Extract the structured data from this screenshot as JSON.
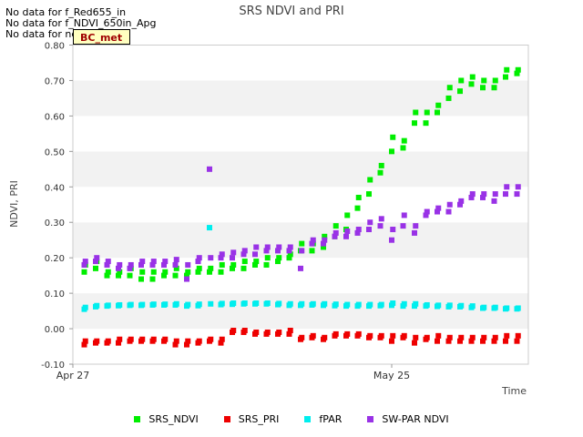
{
  "no_data": [
    "No data for f_Red655_in",
    "No data for f_NDVI_650in_Apg",
    "No data for ndvi"
  ],
  "badge": "BC_met",
  "colors": {
    "SRS_NDVI": "#00ee00",
    "SRS_PRI": "#ee0000",
    "fPAR": "#00eeee",
    "SW-PAR NDVI": "#9932e6"
  },
  "chart_data": {
    "type": "scatter",
    "title": "SRS NDVI and PRI",
    "xlabel": "Time",
    "ylabel": "NDVI, PRI",
    "ylim": [
      -0.1,
      0.8
    ],
    "xlim_days": [
      0,
      40
    ],
    "x_ticks": [
      {
        "day": 0,
        "label": "Apr 27"
      },
      {
        "day": 28,
        "label": "May 25"
      }
    ],
    "y_ticks": [
      -0.1,
      0.0,
      0.1,
      0.2,
      0.3,
      0.4,
      0.5,
      0.6,
      0.7,
      0.8
    ],
    "y_tick_labels": [
      "-0.10",
      "0.00",
      "0.10",
      "0.20",
      "0.30",
      "0.40",
      "0.50",
      "0.60",
      "0.70",
      "0.80"
    ],
    "grid_bands": true,
    "series": [
      {
        "name": "SRS_NDVI",
        "x": [
          1,
          1.1,
          2,
          2.1,
          3,
          3.1,
          4,
          4.1,
          5,
          5.1,
          6,
          6.1,
          7,
          7.1,
          8,
          8.1,
          9,
          9.1,
          10,
          10.1,
          11,
          11.1,
          12,
          12.1,
          13,
          13.1,
          14,
          14.1,
          15,
          15.1,
          16,
          16.1,
          17,
          17.1,
          18,
          18.1,
          19,
          19.1,
          20,
          20.1,
          21,
          21.1,
          22,
          22.1,
          23,
          23.1,
          24,
          24.1,
          25,
          25.1,
          26,
          26.1,
          27,
          27.1,
          28,
          28.1,
          29,
          29.1,
          30,
          30.1,
          31,
          31.1,
          32,
          32.1,
          33,
          33.1,
          34,
          34.1,
          35,
          35.1,
          36,
          36.1,
          37,
          37.1,
          38,
          38.1,
          39,
          39.1
        ],
        "y": [
          0.16,
          0.18,
          0.17,
          0.19,
          0.15,
          0.16,
          0.15,
          0.16,
          0.15,
          0.17,
          0.14,
          0.16,
          0.14,
          0.16,
          0.15,
          0.16,
          0.15,
          0.17,
          0.15,
          0.16,
          0.16,
          0.17,
          0.16,
          0.17,
          0.16,
          0.18,
          0.17,
          0.18,
          0.17,
          0.19,
          0.18,
          0.19,
          0.18,
          0.2,
          0.19,
          0.2,
          0.2,
          0.21,
          0.22,
          0.24,
          0.22,
          0.24,
          0.23,
          0.26,
          0.26,
          0.29,
          0.28,
          0.32,
          0.34,
          0.37,
          0.38,
          0.42,
          0.44,
          0.46,
          0.5,
          0.54,
          0.51,
          0.53,
          0.58,
          0.61,
          0.58,
          0.61,
          0.61,
          0.63,
          0.65,
          0.68,
          0.67,
          0.7,
          0.69,
          0.71,
          0.68,
          0.7,
          0.68,
          0.7,
          0.71,
          0.73,
          0.72,
          0.73
        ]
      },
      {
        "name": "SRS_PRI",
        "x": [
          1,
          1.1,
          2,
          2.1,
          3,
          3.1,
          4,
          4.1,
          5,
          5.1,
          6,
          6.1,
          7,
          7.1,
          8,
          8.1,
          9,
          9.1,
          10,
          10.1,
          11,
          11.1,
          12,
          12.1,
          13,
          13.1,
          14,
          14.1,
          15,
          15.1,
          16,
          16.1,
          17,
          17.1,
          18,
          18.1,
          19,
          19.1,
          20,
          20.1,
          21,
          21.1,
          22,
          22.1,
          23,
          23.1,
          24,
          24.1,
          25,
          25.1,
          26,
          26.1,
          27,
          27.1,
          28,
          28.1,
          29,
          29.1,
          30,
          30.1,
          31,
          31.1,
          32,
          32.1,
          33,
          33.1,
          34,
          34.1,
          35,
          35.1,
          36,
          36.1,
          37,
          37.1,
          38,
          38.1,
          39,
          39.1
        ],
        "y": [
          -0.045,
          -0.035,
          -0.04,
          -0.035,
          -0.04,
          -0.035,
          -0.04,
          -0.03,
          -0.035,
          -0.03,
          -0.035,
          -0.03,
          -0.035,
          -0.03,
          -0.035,
          -0.03,
          -0.045,
          -0.035,
          -0.045,
          -0.035,
          -0.04,
          -0.035,
          -0.035,
          -0.03,
          -0.04,
          -0.03,
          -0.01,
          -0.005,
          -0.01,
          -0.005,
          -0.015,
          -0.01,
          -0.015,
          -0.01,
          -0.015,
          -0.01,
          -0.015,
          -0.005,
          -0.03,
          -0.025,
          -0.025,
          -0.02,
          -0.03,
          -0.025,
          -0.02,
          -0.015,
          -0.02,
          -0.015,
          -0.02,
          -0.015,
          -0.025,
          -0.02,
          -0.025,
          -0.02,
          -0.035,
          -0.02,
          -0.025,
          -0.02,
          -0.04,
          -0.025,
          -0.03,
          -0.025,
          -0.035,
          -0.02,
          -0.035,
          -0.025,
          -0.035,
          -0.025,
          -0.035,
          -0.025,
          -0.035,
          -0.025,
          -0.035,
          -0.025,
          -0.035,
          -0.02,
          -0.035,
          -0.02
        ]
      },
      {
        "name": "fPAR",
        "x": [
          1,
          1.1,
          2,
          2.1,
          3,
          3.1,
          4,
          4.1,
          5,
          5.1,
          6,
          6.1,
          7,
          7.1,
          8,
          8.1,
          9,
          9.1,
          10,
          10.1,
          11,
          11.1,
          12,
          12.1,
          13,
          13.1,
          14,
          14.1,
          15,
          15.1,
          16,
          16.1,
          17,
          17.1,
          18,
          18.1,
          19,
          19.1,
          20,
          20.1,
          21,
          21.1,
          22,
          22.1,
          23,
          23.1,
          24,
          24.1,
          25,
          25.1,
          26,
          26.1,
          27,
          27.1,
          28,
          28.1,
          29,
          29.1,
          30,
          30.1,
          31,
          31.1,
          32,
          32.1,
          33,
          33.1,
          34,
          34.1,
          35,
          35.1,
          36,
          36.1,
          37,
          37.1,
          38,
          38.1,
          39,
          39.1
        ],
        "y": [
          0.055,
          0.06,
          0.062,
          0.065,
          0.064,
          0.066,
          0.065,
          0.067,
          0.066,
          0.068,
          0.066,
          0.068,
          0.067,
          0.069,
          0.067,
          0.069,
          0.067,
          0.07,
          0.064,
          0.068,
          0.065,
          0.069,
          0.285,
          0.07,
          0.068,
          0.071,
          0.069,
          0.072,
          0.07,
          0.072,
          0.07,
          0.072,
          0.07,
          0.072,
          0.068,
          0.071,
          0.066,
          0.07,
          0.066,
          0.07,
          0.067,
          0.07,
          0.066,
          0.07,
          0.065,
          0.069,
          0.064,
          0.068,
          0.064,
          0.068,
          0.064,
          0.068,
          0.065,
          0.068,
          0.066,
          0.072,
          0.064,
          0.07,
          0.064,
          0.07,
          0.064,
          0.067,
          0.063,
          0.066,
          0.062,
          0.066,
          0.062,
          0.065,
          0.06,
          0.064,
          0.058,
          0.06,
          0.058,
          0.06,
          0.056,
          0.058,
          0.056,
          0.058
        ]
      },
      {
        "name": "SW-PAR NDVI",
        "x": [
          1,
          1.1,
          2,
          2.1,
          3,
          3.1,
          4,
          4.1,
          5,
          5.1,
          6,
          6.1,
          7,
          7.1,
          8,
          8.1,
          9,
          9.1,
          10,
          10.1,
          11,
          11.1,
          12,
          12.1,
          13,
          13.1,
          14,
          14.1,
          15,
          15.1,
          16,
          16.1,
          17,
          17.1,
          18,
          18.1,
          19,
          19.1,
          20,
          20.1,
          21,
          21.1,
          22,
          22.1,
          23,
          23.1,
          24,
          24.1,
          25,
          25.1,
          26,
          26.1,
          27,
          27.1,
          28,
          28.1,
          29,
          29.1,
          30,
          30.1,
          31,
          31.1,
          32,
          32.1,
          33,
          33.1,
          34,
          34.1,
          35,
          35.1,
          36,
          36.1,
          37,
          37.1,
          38,
          38.1,
          39,
          39.1
        ],
        "y": [
          0.18,
          0.19,
          0.19,
          0.2,
          0.18,
          0.19,
          0.17,
          0.18,
          0.17,
          0.18,
          0.18,
          0.19,
          0.18,
          0.19,
          0.18,
          0.19,
          0.18,
          0.195,
          0.14,
          0.18,
          0.19,
          0.2,
          0.45,
          0.2,
          0.2,
          0.21,
          0.2,
          0.215,
          0.21,
          0.22,
          0.21,
          0.23,
          0.22,
          0.23,
          0.22,
          0.23,
          0.22,
          0.23,
          0.17,
          0.22,
          0.24,
          0.25,
          0.24,
          0.25,
          0.26,
          0.27,
          0.26,
          0.275,
          0.27,
          0.28,
          0.28,
          0.3,
          0.29,
          0.31,
          0.25,
          0.28,
          0.29,
          0.32,
          0.27,
          0.29,
          0.32,
          0.33,
          0.33,
          0.34,
          0.33,
          0.35,
          0.35,
          0.36,
          0.37,
          0.38,
          0.37,
          0.38,
          0.36,
          0.38,
          0.38,
          0.4,
          0.38,
          0.4
        ]
      }
    ]
  }
}
